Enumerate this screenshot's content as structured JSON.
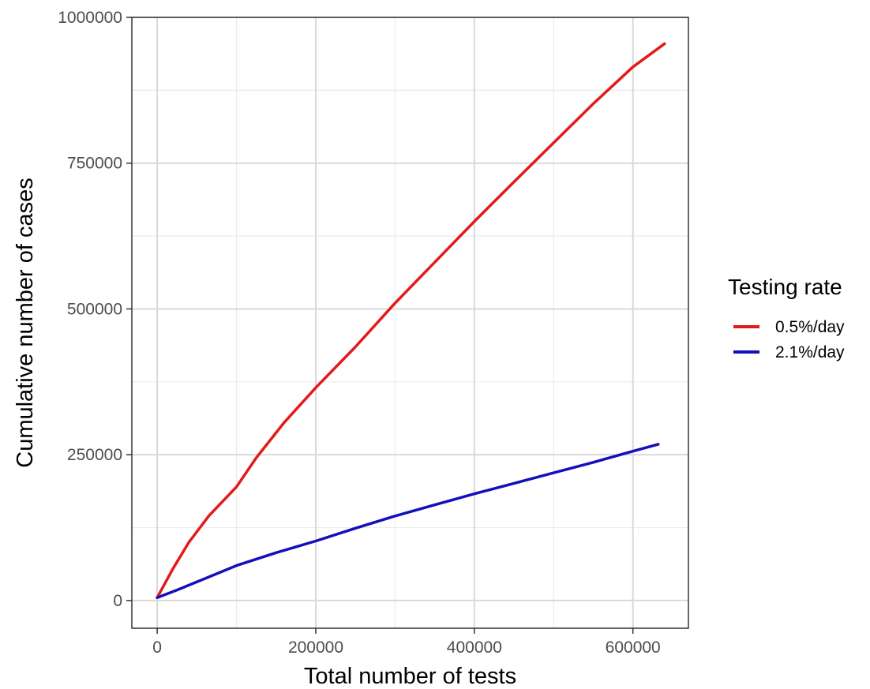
{
  "chart_data": {
    "type": "line",
    "title": "",
    "xlabel": "Total number of tests",
    "ylabel": "Cumulative number of cases",
    "xlim": [
      -32000,
      670000
    ],
    "ylim": [
      -47500,
      1000000
    ],
    "x_ticks": [
      0,
      200000,
      400000,
      600000
    ],
    "x_tick_labels": [
      "0",
      "200000",
      "400000",
      "600000"
    ],
    "y_ticks": [
      0,
      250000,
      500000,
      750000,
      1000000
    ],
    "y_tick_labels": [
      "0",
      "250000",
      "500000",
      "750000",
      "1000000"
    ],
    "x_minor_grid": [
      100000,
      300000,
      500000
    ],
    "y_minor_grid": [
      125000,
      375000,
      625000,
      875000
    ],
    "grid": true,
    "legend": {
      "title": "Testing rate",
      "position": "right"
    },
    "series": [
      {
        "name": "0.5%/day",
        "color": "#e31a1c",
        "points": [
          [
            0,
            5000
          ],
          [
            20000,
            55000
          ],
          [
            40000,
            100000
          ],
          [
            65000,
            145000
          ],
          [
            100000,
            195000
          ],
          [
            125000,
            245000
          ],
          [
            160000,
            305000
          ],
          [
            200000,
            365000
          ],
          [
            250000,
            435000
          ],
          [
            300000,
            510000
          ],
          [
            350000,
            580000
          ],
          [
            400000,
            650000
          ],
          [
            450000,
            718000
          ],
          [
            500000,
            785000
          ],
          [
            550000,
            852000
          ],
          [
            600000,
            915000
          ],
          [
            640000,
            955000
          ]
        ]
      },
      {
        "name": "2.1%/day",
        "color": "#1111bb",
        "points": [
          [
            0,
            5000
          ],
          [
            25000,
            18000
          ],
          [
            50000,
            32000
          ],
          [
            100000,
            60000
          ],
          [
            150000,
            82000
          ],
          [
            200000,
            102000
          ],
          [
            250000,
            124000
          ],
          [
            300000,
            145000
          ],
          [
            350000,
            164000
          ],
          [
            400000,
            183000
          ],
          [
            450000,
            201000
          ],
          [
            500000,
            219000
          ],
          [
            550000,
            237000
          ],
          [
            600000,
            256000
          ],
          [
            632000,
            268000
          ]
        ]
      }
    ]
  }
}
